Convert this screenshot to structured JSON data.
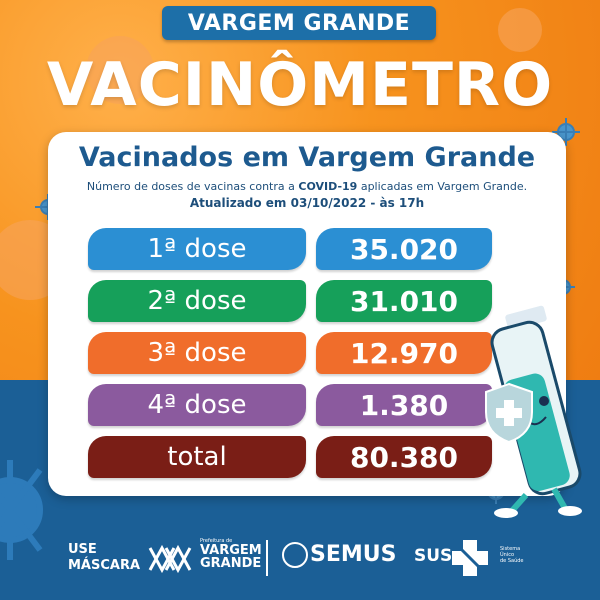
{
  "header": {
    "city": "VARGEM GRANDE",
    "title": "VACINÔMETRO"
  },
  "card": {
    "title": "Vacinados em Vargem Grande",
    "description_prefix": "Número de doses de vacinas contra a ",
    "description_highlight": "COVID-19",
    "description_suffix": " aplicadas em Vargem Grande.",
    "updated": "Atualizado em 03/10/2022 - às 17h"
  },
  "doses": [
    {
      "label": "1ª dose",
      "value": "35.020",
      "color": "#2b8fd3"
    },
    {
      "label": "2ª dose",
      "value": "31.010",
      "color": "#16a05a"
    },
    {
      "label": "3ª dose",
      "value": "12.970",
      "color": "#f06d2b"
    },
    {
      "label": "4ª dose",
      "value": "1.380",
      "color": "#8b5a9e"
    },
    {
      "label": "total",
      "value": "80.380",
      "color": "#7a1e16"
    }
  ],
  "footer": {
    "use_mask": "USE\nMÁSCARA",
    "pref_small": "Prefeitura de",
    "pref_name_1": "VARGEM",
    "pref_name_2": "GRANDE",
    "semus": "SEMUS",
    "sus": "SUS",
    "sus_sub": "Sistema\nÚnico\nde Saúde"
  },
  "colors": {
    "orange": "#f7931e",
    "blue": "#1b5f96",
    "title_blue": "#1d5a8f"
  },
  "icons": [
    "virus-icon",
    "syringe-mascot-icon",
    "shield-cross-icon",
    "sus-cross-icon",
    "prefeitura-logo-icon"
  ]
}
